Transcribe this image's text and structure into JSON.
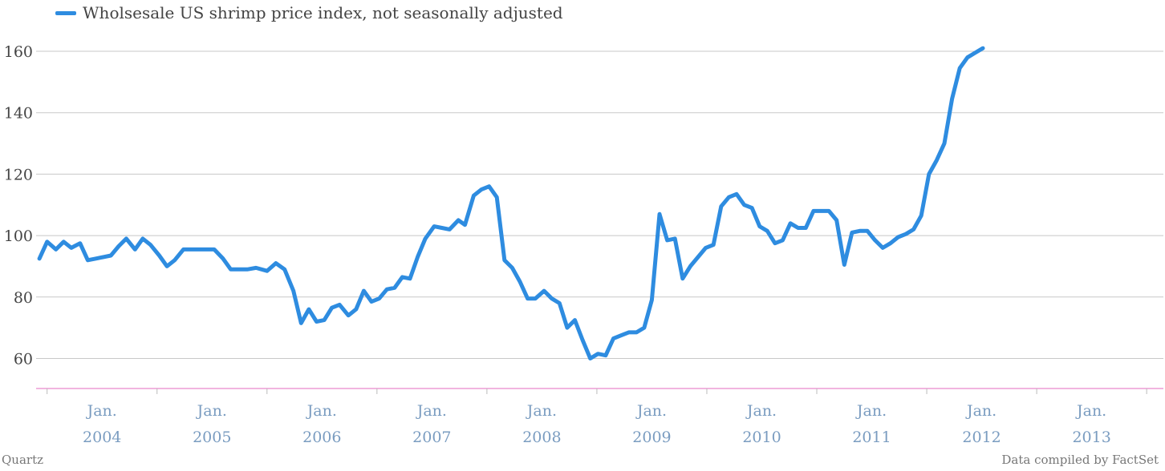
{
  "chart_data": {
    "type": "line",
    "legend": "Wholsesale US shrimp price index, not seasonally adjusted",
    "legend_position": "top-left",
    "grid": true,
    "ylim": [
      50,
      165
    ],
    "yticks": [
      60,
      80,
      100,
      120,
      140,
      160
    ],
    "xlim": [
      2003.4,
      2013.55
    ],
    "xticks": [
      {
        "x": 2004.0,
        "line1": "Jan.",
        "line2": "2004"
      },
      {
        "x": 2005.0,
        "line1": "Jan.",
        "line2": "2005"
      },
      {
        "x": 2006.0,
        "line1": "Jan.",
        "line2": "2006"
      },
      {
        "x": 2007.0,
        "line1": "Jan.",
        "line2": "2007"
      },
      {
        "x": 2008.0,
        "line1": "Jan.",
        "line2": "2008"
      },
      {
        "x": 2009.0,
        "line1": "Jan.",
        "line2": "2009"
      },
      {
        "x": 2010.0,
        "line1": "Jan.",
        "line2": "2010"
      },
      {
        "x": 2011.0,
        "line1": "Jan.",
        "line2": "2011"
      },
      {
        "x": 2012.0,
        "line1": "Jan.",
        "line2": "2012"
      },
      {
        "x": 2013.0,
        "line1": "Jan.",
        "line2": "2013"
      }
    ],
    "series": [
      {
        "color": "#2e8ce0",
        "points": [
          [
            2003.43,
            92.5
          ],
          [
            2003.5,
            98
          ],
          [
            2003.58,
            95.5
          ],
          [
            2003.65,
            98
          ],
          [
            2003.72,
            96
          ],
          [
            2003.8,
            97.5
          ],
          [
            2003.87,
            92
          ],
          [
            2003.94,
            92.5
          ],
          [
            2004.08,
            93.5
          ],
          [
            2004.15,
            96.5
          ],
          [
            2004.22,
            99
          ],
          [
            2004.3,
            95.5
          ],
          [
            2004.37,
            99
          ],
          [
            2004.44,
            97
          ],
          [
            2004.52,
            93.5
          ],
          [
            2004.59,
            90
          ],
          [
            2004.66,
            92
          ],
          [
            2004.74,
            95.5
          ],
          [
            2004.87,
            95.5
          ],
          [
            2005.02,
            95.5
          ],
          [
            2005.1,
            92.5
          ],
          [
            2005.17,
            89
          ],
          [
            2005.24,
            89
          ],
          [
            2005.32,
            89
          ],
          [
            2005.4,
            89.5
          ],
          [
            2005.5,
            88.5
          ],
          [
            2005.58,
            91
          ],
          [
            2005.66,
            89
          ],
          [
            2005.74,
            82
          ],
          [
            2005.81,
            71.5
          ],
          [
            2005.88,
            76
          ],
          [
            2005.95,
            72
          ],
          [
            2006.02,
            72.5
          ],
          [
            2006.09,
            76.5
          ],
          [
            2006.16,
            77.5
          ],
          [
            2006.24,
            74
          ],
          [
            2006.31,
            76
          ],
          [
            2006.38,
            82
          ],
          [
            2006.45,
            78.5
          ],
          [
            2006.52,
            79.5
          ],
          [
            2006.59,
            82.5
          ],
          [
            2006.66,
            83
          ],
          [
            2006.73,
            86.5
          ],
          [
            2006.8,
            86
          ],
          [
            2006.87,
            93
          ],
          [
            2006.94,
            99
          ],
          [
            2007.02,
            103
          ],
          [
            2007.09,
            102.5
          ],
          [
            2007.16,
            102
          ],
          [
            2007.24,
            105
          ],
          [
            2007.3,
            103.5
          ],
          [
            2007.38,
            113
          ],
          [
            2007.45,
            115
          ],
          [
            2007.52,
            116
          ],
          [
            2007.59,
            112.5
          ],
          [
            2007.66,
            92
          ],
          [
            2007.73,
            89.5
          ],
          [
            2007.8,
            85
          ],
          [
            2007.87,
            79.5
          ],
          [
            2007.94,
            79.5
          ],
          [
            2008.02,
            82
          ],
          [
            2008.09,
            79.5
          ],
          [
            2008.16,
            78
          ],
          [
            2008.23,
            70
          ],
          [
            2008.3,
            72.5
          ],
          [
            2008.37,
            66
          ],
          [
            2008.44,
            60
          ],
          [
            2008.51,
            61.5
          ],
          [
            2008.58,
            61
          ],
          [
            2008.65,
            66.5
          ],
          [
            2008.72,
            67.5
          ],
          [
            2008.79,
            68.5
          ],
          [
            2008.86,
            68.5
          ],
          [
            2008.93,
            70
          ],
          [
            2009.0,
            79
          ],
          [
            2009.07,
            107
          ],
          [
            2009.14,
            98.5
          ],
          [
            2009.21,
            99
          ],
          [
            2009.28,
            86
          ],
          [
            2009.35,
            90
          ],
          [
            2009.42,
            93
          ],
          [
            2009.49,
            96
          ],
          [
            2009.56,
            97
          ],
          [
            2009.63,
            109.5
          ],
          [
            2009.7,
            112.5
          ],
          [
            2009.77,
            113.5
          ],
          [
            2009.84,
            110
          ],
          [
            2009.91,
            109
          ],
          [
            2009.98,
            103
          ],
          [
            2010.05,
            101.5
          ],
          [
            2010.12,
            97.5
          ],
          [
            2010.19,
            98.5
          ],
          [
            2010.26,
            104
          ],
          [
            2010.33,
            102.5
          ],
          [
            2010.4,
            102.5
          ],
          [
            2010.47,
            108
          ],
          [
            2010.54,
            108
          ],
          [
            2010.61,
            108
          ],
          [
            2010.68,
            105
          ],
          [
            2010.75,
            90.5
          ],
          [
            2010.82,
            101
          ],
          [
            2010.89,
            101.5
          ],
          [
            2010.96,
            101.5
          ],
          [
            2011.03,
            98.5
          ],
          [
            2011.1,
            96
          ],
          [
            2011.17,
            97.5
          ],
          [
            2011.24,
            99.5
          ],
          [
            2011.31,
            100.5
          ],
          [
            2011.38,
            102
          ],
          [
            2011.45,
            106.5
          ],
          [
            2011.52,
            120
          ],
          [
            2011.59,
            124.5
          ],
          [
            2011.66,
            130
          ],
          [
            2011.73,
            144.5
          ],
          [
            2011.8,
            154.5
          ],
          [
            2011.87,
            158
          ],
          [
            2011.94,
            159.5
          ],
          [
            2012.01,
            161
          ]
        ]
      }
    ]
  },
  "footer": {
    "source_left": "Quartz",
    "source_right": "Data compiled by FactSet"
  }
}
